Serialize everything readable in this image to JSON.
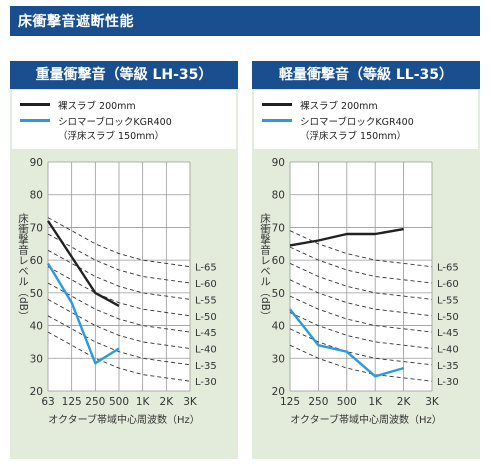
{
  "page_title": "床衝撃音遮断性能",
  "colors": {
    "header_bg": "#1a4f8f",
    "panel_bg": "#e3ecda",
    "series_bare": "#222222",
    "series_kgr": "#2b9be0"
  },
  "chart_data": [
    {
      "type": "line",
      "title": "重量衝撃音（等級 LH-35）",
      "x_tick_labels": [
        "63",
        "125",
        "250",
        "500",
        "1K",
        "2K",
        "3K"
      ],
      "y_tick_labels": [
        "90",
        "80",
        "70",
        "60",
        "50",
        "40",
        "30",
        "20"
      ],
      "ylim": [
        20,
        90
      ],
      "ylabel": "床衝撃音レベル（dB）",
      "xlabel": "オクターブ帯域中心周波数（Hz）",
      "grid": true,
      "reference_curves": [
        "L-65",
        "L-60",
        "L-55",
        "L-50",
        "L-45",
        "L-40",
        "L-35",
        "L-30"
      ],
      "legend": {
        "lines": [
          "裸スラブ 200mm",
          "シロマーブロックKGR400",
          "（浮床スラブ 150mm）"
        ]
      },
      "series": [
        {
          "name": "裸スラブ 200mm",
          "color": "#222222",
          "x": [
            "63",
            "125",
            "250",
            "500"
          ],
          "values": [
            72,
            61,
            50,
            46
          ]
        },
        {
          "name": "シロマーブロックKGR400 （浮床スラブ 150mm）",
          "color": "#2b9be0",
          "x": [
            "63",
            "125",
            "250",
            "500"
          ],
          "values": [
            59,
            47,
            28.5,
            33
          ]
        }
      ]
    },
    {
      "type": "line",
      "title": "軽量衝撃音（等級 LL-35）",
      "x_tick_labels": [
        "125",
        "250",
        "500",
        "1K",
        "2K",
        "3K"
      ],
      "y_tick_labels": [
        "90",
        "80",
        "70",
        "60",
        "50",
        "40",
        "30",
        "20"
      ],
      "ylim": [
        20,
        90
      ],
      "ylabel": "床衝撃音レベル（dB）",
      "xlabel": "オクターブ帯域中心周波数（Hz）",
      "grid": true,
      "reference_curves": [
        "L-65",
        "L-60",
        "L-55",
        "L-50",
        "L-45",
        "L-40",
        "L-35",
        "L-30"
      ],
      "legend": {
        "lines": [
          "裸スラブ 200mm",
          "シロマーブロックKGR400",
          "（浮床スラブ 150mm）"
        ]
      },
      "series": [
        {
          "name": "裸スラブ 200mm",
          "color": "#222222",
          "x": [
            "125",
            "250",
            "500",
            "1K",
            "2K"
          ],
          "values": [
            64.5,
            66,
            68,
            68,
            69.5
          ]
        },
        {
          "name": "シロマーブロックKGR400 （浮床スラブ 150mm）",
          "color": "#2b9be0",
          "x": [
            "125",
            "250",
            "500",
            "1K",
            "2K"
          ],
          "values": [
            45,
            34,
            32,
            24.5,
            27
          ]
        }
      ]
    }
  ]
}
